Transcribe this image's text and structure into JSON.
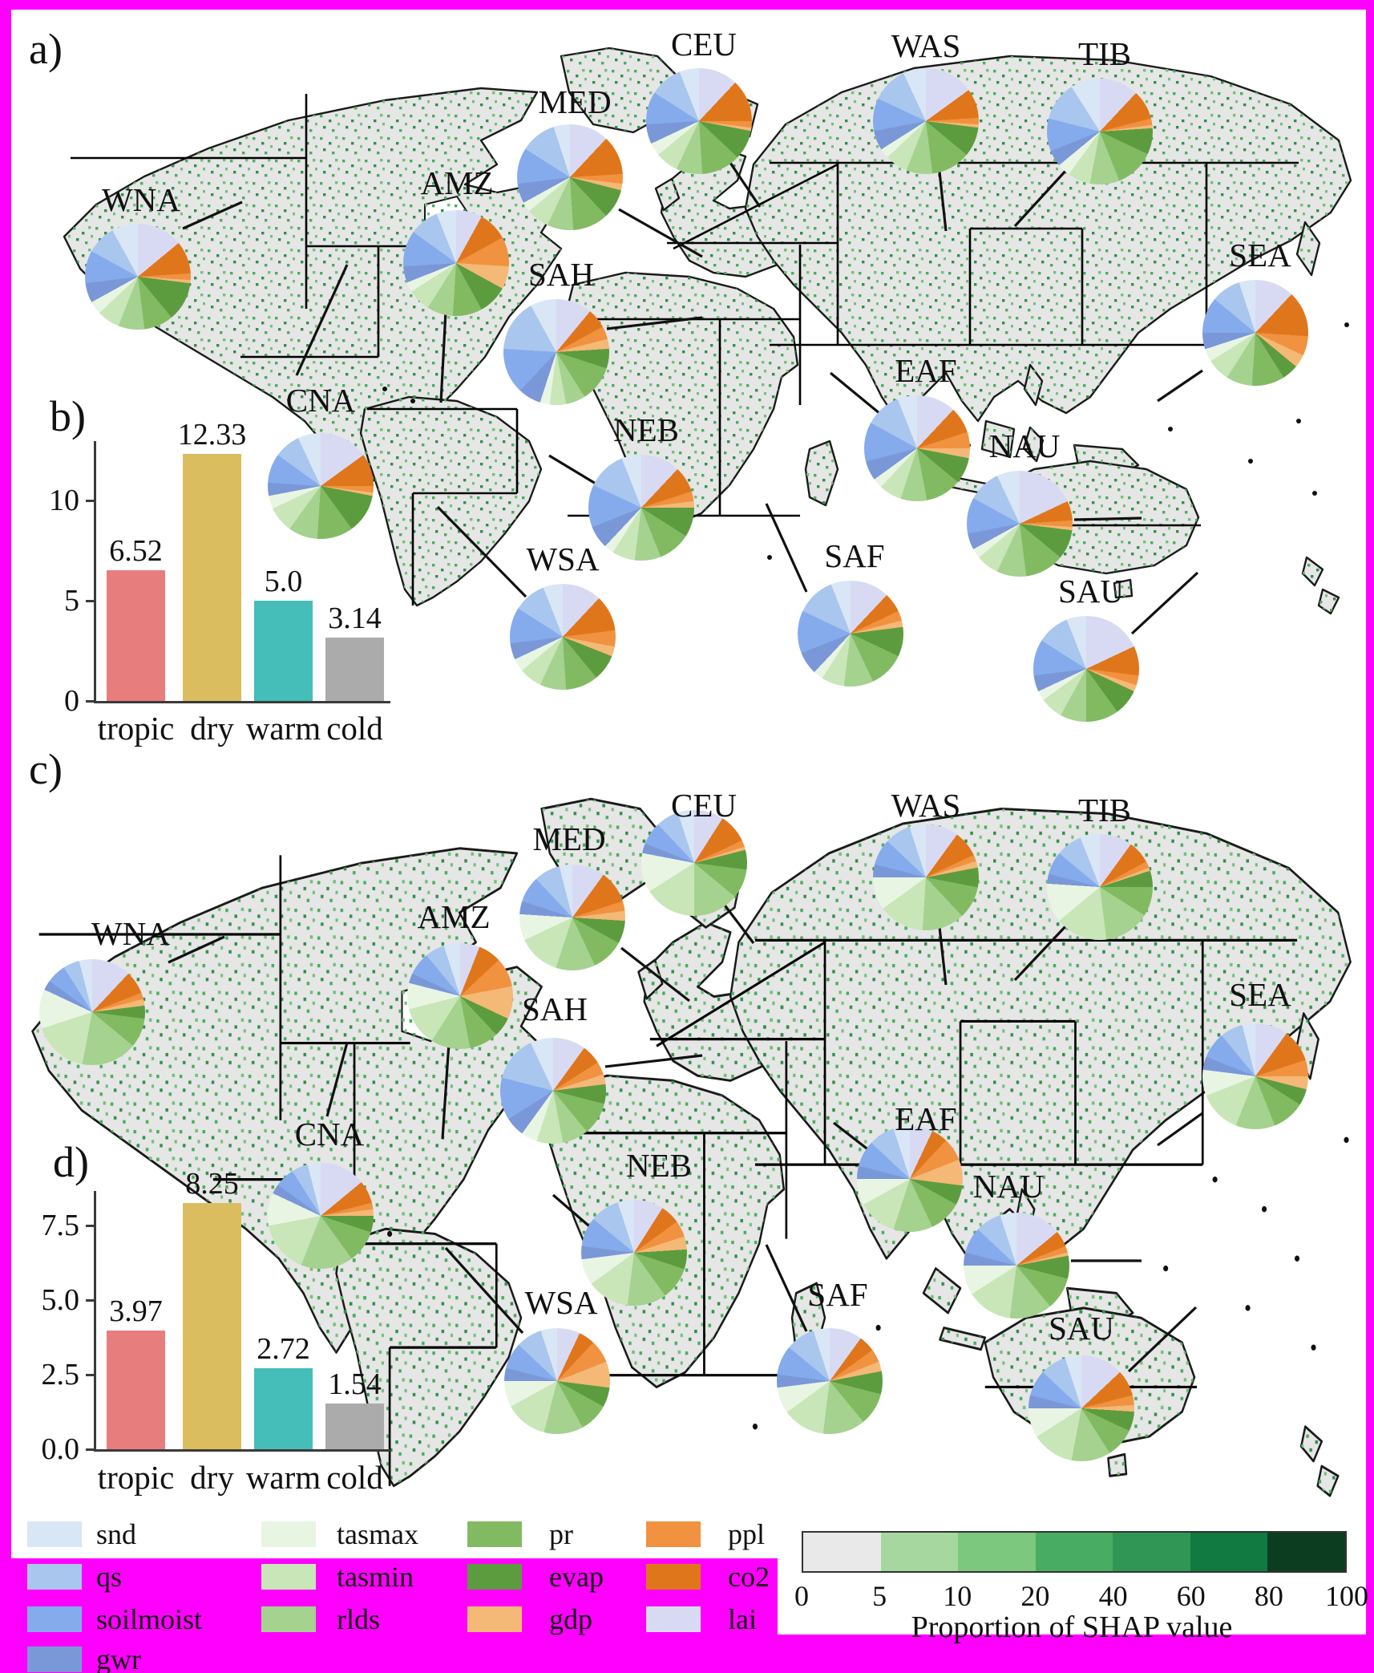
{
  "panels": {
    "a": "a)",
    "b": "b)",
    "c": "c)",
    "d": "d)"
  },
  "variables": [
    {
      "key": "snd",
      "label": "snd",
      "color": "#d9e6f5"
    },
    {
      "key": "qs",
      "label": "qs",
      "color": "#a9c6ee"
    },
    {
      "key": "soilmoist",
      "label": "soilmoist",
      "color": "#85abec"
    },
    {
      "key": "gwr",
      "label": "gwr",
      "color": "#7a98d8"
    },
    {
      "key": "tasmax",
      "label": "tasmax",
      "color": "#e9f5e3"
    },
    {
      "key": "tasmin",
      "label": "tasmin",
      "color": "#c8e6b8"
    },
    {
      "key": "rlds",
      "label": "rlds",
      "color": "#a5d28f"
    },
    {
      "key": "pr",
      "label": "pr",
      "color": "#82ba62"
    },
    {
      "key": "evap",
      "label": "evap",
      "color": "#5c9c3f"
    },
    {
      "key": "gdp",
      "label": "gdp",
      "color": "#f4b877"
    },
    {
      "key": "ppl",
      "label": "ppl",
      "color": "#f09240"
    },
    {
      "key": "co2",
      "label": "co2",
      "color": "#e0761c"
    },
    {
      "key": "lai",
      "label": "lai",
      "color": "#d8daf3"
    }
  ],
  "chart_data": [
    {
      "id": "map_pies_a",
      "type": "pie",
      "panel": "a",
      "note": "Regional pie charts: proportion of SHAP value per driver variable (percent, est.)",
      "categories": [
        "snd",
        "qs",
        "soilmoist",
        "gwr",
        "tasmax",
        "tasmin",
        "rlds",
        "pr",
        "evap",
        "gdp",
        "ppl",
        "co2",
        "lai"
      ],
      "series": [
        {
          "name": "WNA",
          "values": [
            8,
            9,
            10,
            6,
            4,
            7,
            8,
            9,
            12,
            1,
            2,
            10,
            14
          ]
        },
        {
          "name": "CNA",
          "values": [
            7,
            8,
            9,
            4,
            4,
            8,
            9,
            11,
            12,
            1,
            2,
            10,
            15
          ]
        },
        {
          "name": "AMZ",
          "values": [
            6,
            9,
            11,
            5,
            3,
            7,
            8,
            9,
            9,
            7,
            9,
            9,
            8
          ]
        },
        {
          "name": "MED",
          "values": [
            5,
            11,
            11,
            6,
            3,
            7,
            8,
            11,
            9,
            2,
            3,
            12,
            12
          ]
        },
        {
          "name": "CEU",
          "values": [
            6,
            10,
            10,
            6,
            4,
            7,
            8,
            12,
            9,
            1,
            2,
            13,
            12
          ]
        },
        {
          "name": "SAH",
          "values": [
            8,
            16,
            14,
            7,
            3,
            5,
            6,
            11,
            6,
            3,
            4,
            6,
            11
          ]
        },
        {
          "name": "WAS",
          "values": [
            7,
            11,
            10,
            6,
            3,
            7,
            8,
            12,
            9,
            1,
            2,
            9,
            15
          ]
        },
        {
          "name": "TIB",
          "values": [
            9,
            12,
            10,
            5,
            4,
            7,
            9,
            12,
            8,
            1,
            2,
            9,
            12
          ]
        },
        {
          "name": "SEA",
          "values": [
            5,
            9,
            11,
            5,
            4,
            7,
            8,
            10,
            5,
            4,
            6,
            14,
            12
          ]
        },
        {
          "name": "EAF",
          "values": [
            6,
            11,
            12,
            6,
            3,
            7,
            8,
            11,
            8,
            3,
            5,
            8,
            12
          ]
        },
        {
          "name": "NEB",
          "values": [
            6,
            12,
            13,
            7,
            3,
            7,
            8,
            10,
            9,
            2,
            3,
            8,
            12
          ]
        },
        {
          "name": "WSA",
          "values": [
            6,
            10,
            11,
            5,
            4,
            7,
            8,
            10,
            8,
            3,
            5,
            11,
            12
          ]
        },
        {
          "name": "SAF",
          "values": [
            6,
            12,
            13,
            7,
            3,
            7,
            9,
            11,
            9,
            2,
            3,
            6,
            12
          ]
        },
        {
          "name": "NAU",
          "values": [
            7,
            10,
            11,
            5,
            3,
            7,
            9,
            12,
            9,
            1,
            2,
            6,
            18
          ]
        },
        {
          "name": "SAU",
          "values": [
            6,
            10,
            11,
            5,
            3,
            7,
            8,
            10,
            8,
            2,
            3,
            9,
            18
          ]
        }
      ]
    },
    {
      "id": "bar_b",
      "type": "bar",
      "panel": "b",
      "categories": [
        "tropic",
        "dry",
        "warm",
        "cold"
      ],
      "values": [
        6.52,
        12.33,
        5.0,
        3.14
      ],
      "value_labels": [
        "6.52",
        "12.33",
        "5.0",
        "3.14"
      ],
      "bar_colors": [
        "#e87d7d",
        "#d9bd5f",
        "#45bdb9",
        "#ababab"
      ],
      "yticks": [
        "0",
        "5",
        "10"
      ],
      "ytick_values": [
        0,
        5,
        10
      ],
      "ylim": [
        0,
        13.5
      ],
      "xlabel": "",
      "ylabel": ""
    },
    {
      "id": "map_pies_c",
      "type": "pie",
      "panel": "c",
      "note": "Regional pie charts: proportion of SHAP value per driver variable (percent, est.)",
      "categories": [
        "snd",
        "qs",
        "soilmoist",
        "gwr",
        "tasmax",
        "tasmin",
        "rlds",
        "pr",
        "evap",
        "gdp",
        "ppl",
        "co2",
        "lai"
      ],
      "series": [
        {
          "name": "WNA",
          "values": [
            4,
            5,
            6,
            3,
            12,
            17,
            17,
            9,
            4,
            2,
            2,
            7,
            12
          ]
        },
        {
          "name": "CNA",
          "values": [
            4,
            5,
            6,
            3,
            10,
            16,
            16,
            10,
            5,
            2,
            2,
            7,
            14
          ]
        },
        {
          "name": "AMZ",
          "values": [
            5,
            6,
            7,
            3,
            8,
            12,
            12,
            9,
            6,
            10,
            9,
            7,
            6
          ]
        },
        {
          "name": "MED",
          "values": [
            4,
            8,
            8,
            4,
            8,
            13,
            12,
            10,
            7,
            3,
            3,
            10,
            10
          ]
        },
        {
          "name": "CEU",
          "values": [
            5,
            7,
            7,
            3,
            12,
            16,
            14,
            9,
            6,
            1,
            2,
            9,
            9
          ]
        },
        {
          "name": "SAH",
          "values": [
            7,
            14,
            13,
            6,
            5,
            8,
            8,
            10,
            6,
            3,
            4,
            6,
            10
          ]
        },
        {
          "name": "WAS",
          "values": [
            5,
            8,
            8,
            4,
            10,
            14,
            13,
            10,
            6,
            2,
            2,
            8,
            10
          ]
        },
        {
          "name": "TIB",
          "values": [
            6,
            8,
            7,
            3,
            12,
            16,
            14,
            9,
            5,
            1,
            2,
            7,
            10
          ]
        },
        {
          "name": "SEA",
          "values": [
            4,
            7,
            8,
            4,
            8,
            13,
            12,
            10,
            5,
            4,
            5,
            10,
            10
          ]
        },
        {
          "name": "EAF",
          "values": [
            5,
            8,
            8,
            4,
            8,
            12,
            12,
            10,
            6,
            8,
            7,
            5,
            7
          ]
        },
        {
          "name": "NEB",
          "values": [
            5,
            9,
            9,
            4,
            8,
            13,
            12,
            10,
            6,
            4,
            5,
            6,
            9
          ]
        },
        {
          "name": "WSA",
          "values": [
            5,
            8,
            8,
            4,
            8,
            13,
            12,
            9,
            6,
            8,
            7,
            5,
            7
          ]
        },
        {
          "name": "SAF",
          "values": [
            5,
            9,
            9,
            4,
            8,
            13,
            13,
            10,
            7,
            3,
            4,
            5,
            10
          ]
        },
        {
          "name": "NAU",
          "values": [
            5,
            8,
            8,
            4,
            9,
            14,
            13,
            10,
            7,
            1,
            2,
            5,
            14
          ]
        },
        {
          "name": "SAU",
          "values": [
            5,
            8,
            8,
            4,
            9,
            13,
            12,
            9,
            6,
            2,
            3,
            8,
            13
          ]
        }
      ]
    },
    {
      "id": "bar_d",
      "type": "bar",
      "panel": "d",
      "categories": [
        "tropic",
        "dry",
        "warm",
        "cold"
      ],
      "values": [
        3.97,
        8.25,
        2.72,
        1.54
      ],
      "value_labels": [
        "3.97",
        "8.25",
        "2.72",
        "1.54"
      ],
      "bar_colors": [
        "#e87d7d",
        "#d9bd5f",
        "#45bdb9",
        "#ababab"
      ],
      "yticks": [
        "0.0",
        "2.5",
        "5.0",
        "7.5"
      ],
      "ytick_values": [
        0,
        2.5,
        5,
        7.5
      ],
      "ylim": [
        0,
        9
      ],
      "xlabel": "",
      "ylabel": ""
    },
    {
      "id": "colorbar",
      "type": "heatmap",
      "title": "Proportion of SHAP value",
      "tick_labels": [
        "0",
        "5",
        "10",
        "20",
        "40",
        "60",
        "80",
        "100"
      ],
      "segment_colors": [
        "#e9e9e9",
        "#a6d79e",
        "#7cc87e",
        "#48ad62",
        "#2f9655",
        "#107a41",
        "#0d3d20"
      ]
    }
  ],
  "legend": {
    "columns": [
      [
        "snd",
        "qs",
        "soilmoist",
        "gwr"
      ],
      [
        "tasmax",
        "tasmin",
        "rlds"
      ],
      [
        "pr",
        "evap",
        "gdp"
      ],
      [
        "ppl",
        "co2",
        "lai"
      ]
    ]
  }
}
